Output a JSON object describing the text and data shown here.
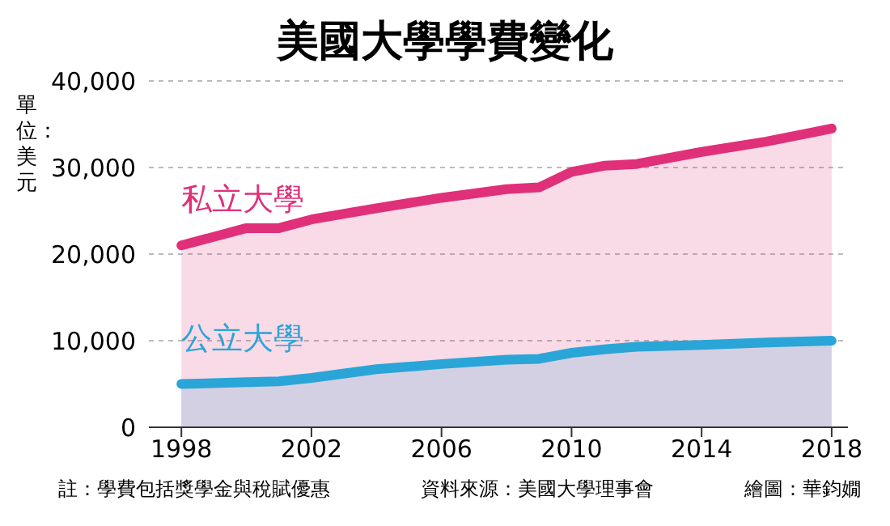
{
  "chart_data": {
    "type": "area",
    "title": "美國大學學費變化",
    "ylabel": "單位：美元",
    "x": [
      1998,
      2000,
      2001,
      2002,
      2004,
      2006,
      2008,
      2009,
      2010,
      2011,
      2012,
      2014,
      2016,
      2018
    ],
    "series": [
      {
        "name": "私立大學",
        "color": "#e0307a",
        "values": [
          21000,
          23000,
          23000,
          24000,
          25300,
          26500,
          27500,
          27700,
          29500,
          30200,
          30400,
          31800,
          33000,
          34500
        ]
      },
      {
        "name": "公立大學",
        "color": "#2aa5d8",
        "values": [
          5000,
          5200,
          5300,
          5700,
          6700,
          7300,
          7800,
          7900,
          8600,
          9000,
          9300,
          9500,
          9800,
          10000
        ]
      }
    ],
    "xlim": [
      1997,
      2018.5
    ],
    "xticks": [
      1998,
      2002,
      2006,
      2010,
      2014,
      2018
    ],
    "ylim": [
      0,
      40000
    ],
    "yticks": [
      0,
      {
        "value": 10000,
        "label": "10,000"
      },
      {
        "value": 20000,
        "label": "20,000"
      },
      {
        "value": 30000,
        "label": "30,000"
      },
      {
        "value": 40000,
        "label": "40,000"
      }
    ],
    "grid": "y",
    "legend": false,
    "annotations": [
      "註：學費包括獎學金與稅賦優惠",
      "資料來源：美國大學理事會",
      "繪圖：華鈞嫺"
    ]
  }
}
